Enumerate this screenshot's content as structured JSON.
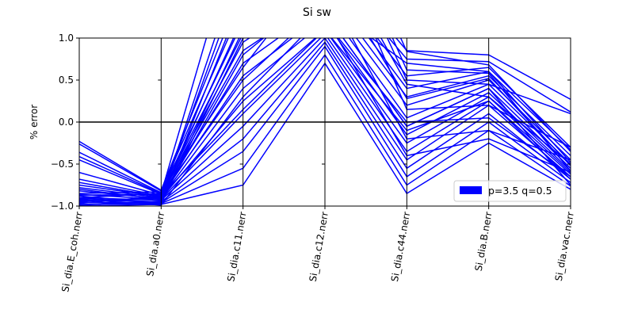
{
  "chart_data": {
    "type": "line",
    "chart_kind": "parallel-coordinates",
    "title": "Si sw",
    "ylabel": "% error",
    "ylim": [
      -1.0,
      1.0
    ],
    "yticks": [
      "1.0",
      "0.5",
      "0.0",
      "−0.5",
      "−1.0"
    ],
    "ytick_values": [
      1.0,
      0.5,
      0.0,
      -0.5,
      -1.0
    ],
    "categories": [
      "Si_dia.E_coh.nerr",
      "Si_dia.a0.nerr",
      "Si_dia.c11.nerr",
      "Si_dia.c12.nerr",
      "Si_dia.c44.nerr",
      "Si_dia.B.nerr",
      "Si_dia.vac.nerr"
    ],
    "grid": "vertical lines at each category",
    "reference_line": 0.0,
    "legend": {
      "label": "p=3.5 q=0.5",
      "position": "lower-right"
    },
    "series_color": "#0000ff",
    "series": [
      {
        "values": [
          -0.23,
          -0.81,
          1.6,
          2.0,
          0.85,
          0.8,
          0.27
        ]
      },
      {
        "values": [
          -0.26,
          -0.82,
          1.4,
          1.9,
          0.75,
          0.72,
          0.12
        ]
      },
      {
        "values": [
          -0.36,
          -0.84,
          1.2,
          1.8,
          0.55,
          0.65,
          -0.3
        ]
      },
      {
        "values": [
          -0.41,
          -0.85,
          1.05,
          1.7,
          0.4,
          0.6,
          -0.33
        ]
      },
      {
        "values": [
          -0.45,
          -0.86,
          0.95,
          1.6,
          0.3,
          0.55,
          -0.4
        ]
      },
      {
        "values": [
          -0.6,
          -0.87,
          0.85,
          1.5,
          0.2,
          0.5,
          -0.45
        ]
      },
      {
        "values": [
          -0.68,
          -0.88,
          0.7,
          1.4,
          0.05,
          0.45,
          -0.5
        ]
      },
      {
        "values": [
          -0.72,
          -0.89,
          0.55,
          1.3,
          -0.05,
          0.4,
          -0.55
        ]
      },
      {
        "values": [
          -0.78,
          -0.9,
          0.4,
          1.2,
          -0.15,
          0.35,
          -0.58
        ]
      },
      {
        "values": [
          -0.82,
          -0.91,
          0.25,
          1.1,
          -0.25,
          0.3,
          -0.6
        ]
      },
      {
        "values": [
          -0.86,
          -0.92,
          0.1,
          1.05,
          -0.35,
          0.25,
          -0.62
        ]
      },
      {
        "values": [
          -0.9,
          -0.93,
          -0.05,
          1.0,
          -0.45,
          0.2,
          -0.65
        ]
      },
      {
        "values": [
          -0.93,
          -0.95,
          -0.2,
          0.95,
          -0.55,
          0.1,
          -0.68
        ]
      },
      {
        "values": [
          -0.96,
          -0.96,
          -0.35,
          0.9,
          -0.65,
          0.0,
          -0.72
        ]
      },
      {
        "values": [
          -0.98,
          -0.97,
          -0.55,
          0.8,
          -0.75,
          -0.1,
          -0.76
        ]
      },
      {
        "values": [
          -1.0,
          -0.98,
          -0.75,
          0.7,
          -0.85,
          -0.25,
          -0.8
        ]
      },
      {
        "values": [
          -0.9,
          -0.85,
          2.5,
          3.0,
          0.84,
          0.68,
          -0.35
        ]
      },
      {
        "values": [
          -0.95,
          -0.9,
          1.8,
          2.2,
          0.45,
          0.3,
          -0.5
        ]
      },
      {
        "values": [
          -0.99,
          -0.94,
          1.5,
          2.4,
          0.15,
          0.2,
          -0.3
        ]
      },
      {
        "values": [
          -0.8,
          -0.92,
          0.8,
          1.6,
          -0.2,
          -0.1,
          -0.45
        ]
      },
      {
        "values": [
          -0.88,
          -0.97,
          1.0,
          1.2,
          0.0,
          0.05,
          -0.65
        ]
      },
      {
        "values": [
          -0.92,
          -0.99,
          0.3,
          1.3,
          -0.05,
          0.4,
          -0.75
        ]
      },
      {
        "values": [
          -0.75,
          -0.89,
          1.25,
          2.8,
          0.62,
          0.58,
          -0.58
        ]
      },
      {
        "values": [
          -0.85,
          -0.83,
          0.65,
          1.9,
          0.28,
          0.52,
          -0.52
        ]
      },
      {
        "values": [
          -0.97,
          -0.88,
          0.15,
          1.1,
          -0.1,
          0.25,
          -0.68
        ]
      },
      {
        "values": [
          -0.94,
          -0.91,
          2.0,
          2.6,
          0.5,
          0.45,
          0.1
        ]
      },
      {
        "values": [
          -0.91,
          -0.95,
          1.1,
          1.25,
          -0.4,
          -0.2,
          -0.6
        ]
      },
      {
        "values": [
          -0.87,
          -0.86,
          0.5,
          1.4,
          0.7,
          0.6,
          -0.48
        ]
      }
    ]
  }
}
